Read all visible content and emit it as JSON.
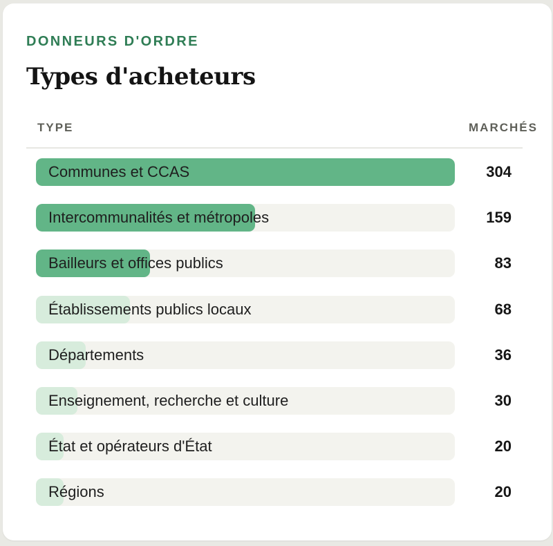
{
  "card": {
    "eyebrow": "DONNEURS D'ORDRE",
    "title": "Types d'acheteurs"
  },
  "table": {
    "col_type": "TYPE",
    "col_count": "MARCHÉS"
  },
  "colors": {
    "bar_strong": "#62b587",
    "bar_light": "#d7ecdc",
    "track": "#f3f3ee",
    "accent": "#2f7d55"
  },
  "chart_data": {
    "type": "bar",
    "orientation": "horizontal",
    "title": "Types d'acheteurs",
    "xlabel": "MARCHÉS",
    "ylabel": "TYPE",
    "xlim": [
      0,
      304
    ],
    "grid": false,
    "categories": [
      "Communes et CCAS",
      "Intercommunalités et métropoles",
      "Bailleurs et offices publics",
      "Établissements publics locaux",
      "Départements",
      "Enseignement, recherche et culture",
      "État et opérateurs d'État",
      "Régions"
    ],
    "values": [
      304,
      159,
      83,
      68,
      36,
      30,
      20,
      20
    ]
  }
}
